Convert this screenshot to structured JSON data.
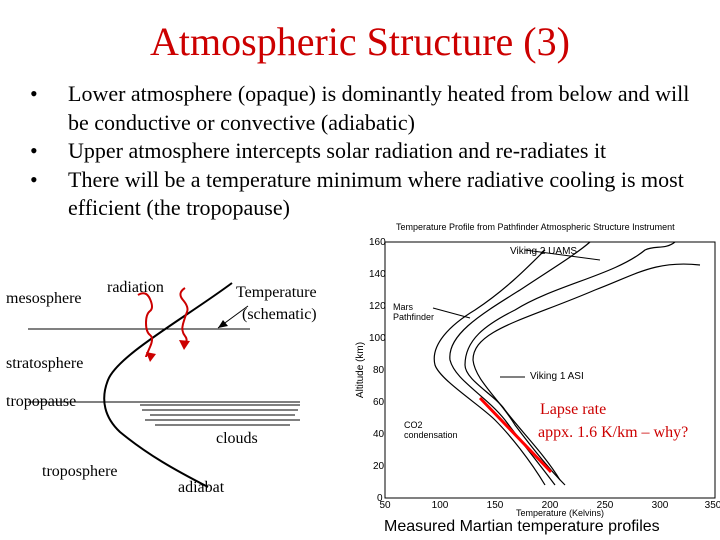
{
  "slide": {
    "title": "Atmospheric Structure (3)",
    "bullets": [
      "Lower atmosphere (opaque) is dominantly heated from below and will be conductive or convective (adiabatic)",
      "Upper atmosphere intercepts solar radiation and re-radiates it",
      "There will be a temperature minimum where radiative cooling is most efficient  (the tropopause)"
    ]
  },
  "schematic": {
    "mesosphere": "mesosphere",
    "radiation": "radiation",
    "temperature": "Temperature",
    "schematic_note": "(schematic)",
    "stratosphere": "stratosphere",
    "tropopause": "tropopause",
    "clouds": "clouds",
    "troposphere": "troposphere",
    "adiabat": "adiabat"
  },
  "graph": {
    "title": "Temperature Profile from Pathfinder Atmospheric Structure Instrument",
    "ylabel": "Altitude (km)",
    "xlabel": "Temperature (Kelvins)",
    "xticks": [
      "50",
      "100",
      "150",
      "200",
      "250",
      "300",
      "350"
    ],
    "yticks": [
      "0",
      "20",
      "40",
      "60",
      "80",
      "100",
      "120",
      "140",
      "160"
    ],
    "annotations": {
      "viking2": "Viking 2 UAMS",
      "mars_pathfinder": "Mars\nPathfinder",
      "viking1": "Viking 1 ASI",
      "co2": "CO2\ncondensation"
    },
    "lapse_rate_line1": "Lapse rate",
    "lapse_rate_line2": "appx. 1.6 K/km – why?",
    "caption": "Measured Martian temperature profiles"
  }
}
